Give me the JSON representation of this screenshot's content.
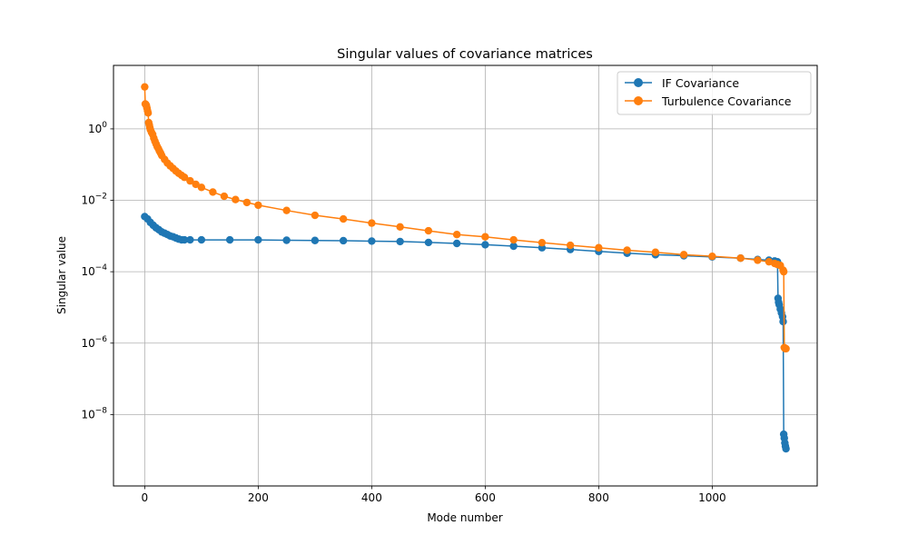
{
  "chart_data": {
    "type": "line",
    "title": "Singular values of covariance matrices",
    "xlabel": "Mode number",
    "ylabel": "Singular value",
    "xlim": [
      -55,
      1185
    ],
    "ylim": [
      1e-10,
      60
    ],
    "yscale": "log",
    "grid": true,
    "legend_position": "top-right",
    "xticks": [
      0,
      200,
      400,
      600,
      800,
      1000
    ],
    "yticks": [
      {
        "value": 1e-08,
        "base": "10",
        "exp": "−8"
      },
      {
        "value": 1e-06,
        "base": "10",
        "exp": "−6"
      },
      {
        "value": 0.0001,
        "base": "10",
        "exp": "−4"
      },
      {
        "value": 0.01,
        "base": "10",
        "exp": "−2"
      },
      {
        "value": 1,
        "base": "10",
        "exp": "0"
      }
    ],
    "series": [
      {
        "name": "IF Covariance",
        "color": "#1f77b4",
        "x": [
          0,
          5,
          10,
          15,
          20,
          25,
          30,
          35,
          40,
          45,
          50,
          55,
          60,
          65,
          70,
          80,
          100,
          150,
          200,
          250,
          300,
          350,
          400,
          450,
          500,
          550,
          600,
          650,
          700,
          750,
          800,
          850,
          900,
          950,
          1000,
          1050,
          1080,
          1100,
          1110,
          1115,
          1116,
          1117,
          1118,
          1120,
          1122,
          1124,
          1125,
          1126,
          1127,
          1128,
          1129,
          1130
        ],
        "y": [
          0.0035,
          0.003,
          0.0024,
          0.002,
          0.0017,
          0.0015,
          0.0013,
          0.0012,
          0.0011,
          0.001,
          0.00095,
          0.00088,
          0.00082,
          0.00078,
          0.00078,
          0.00078,
          0.00078,
          0.00078,
          0.00078,
          0.00076,
          0.00075,
          0.00074,
          0.00072,
          0.0007,
          0.00066,
          0.00062,
          0.00057,
          0.00052,
          0.00047,
          0.00042,
          0.00037,
          0.00033,
          0.0003,
          0.00028,
          0.00026,
          0.00024,
          0.00022,
          0.00021,
          0.0002,
          0.00019,
          1.8e-05,
          1.4e-05,
          1.2e-05,
          9e-06,
          7e-06,
          5.5e-06,
          4e-06,
          2.8e-09,
          2.2e-09,
          1.6e-09,
          1.3e-09,
          1.1e-09
        ]
      },
      {
        "name": "Turbulence Covariance",
        "color": "#ff7f0e",
        "x": [
          0,
          1,
          2,
          3,
          4,
          5,
          6,
          7,
          8,
          9,
          10,
          12,
          14,
          16,
          18,
          20,
          22,
          24,
          26,
          28,
          30,
          35,
          40,
          45,
          50,
          55,
          60,
          65,
          70,
          80,
          90,
          100,
          120,
          140,
          160,
          180,
          200,
          250,
          300,
          350,
          400,
          450,
          500,
          550,
          600,
          650,
          700,
          750,
          800,
          850,
          900,
          950,
          1000,
          1050,
          1080,
          1100,
          1110,
          1115,
          1120,
          1125,
          1126,
          1127,
          1128,
          1129,
          1130
        ],
        "y": [
          15,
          5,
          4.8,
          4.5,
          3.8,
          3.2,
          2.8,
          1.5,
          1.3,
          1.1,
          0.95,
          0.8,
          0.7,
          0.55,
          0.45,
          0.38,
          0.32,
          0.28,
          0.24,
          0.21,
          0.18,
          0.14,
          0.11,
          0.092,
          0.078,
          0.066,
          0.057,
          0.05,
          0.044,
          0.035,
          0.028,
          0.023,
          0.017,
          0.013,
          0.0105,
          0.0087,
          0.0073,
          0.0052,
          0.0038,
          0.003,
          0.0023,
          0.0018,
          0.0014,
          0.0011,
          0.00095,
          0.00078,
          0.00065,
          0.00055,
          0.00047,
          0.0004,
          0.00035,
          0.0003,
          0.00027,
          0.00024,
          0.00021,
          0.00019,
          0.00017,
          0.00016,
          0.00015,
          0.00011,
          0.0001,
          7.5e-07,
          7.2e-07,
          7e-07,
          7e-07
        ]
      }
    ]
  }
}
